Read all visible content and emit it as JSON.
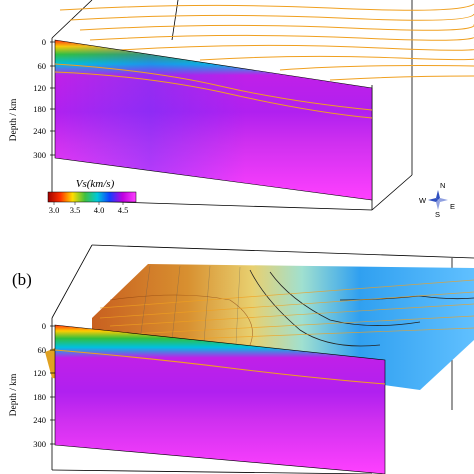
{
  "panel_b_label": "(b)",
  "depth_axis": {
    "title": "Depth / km",
    "ticks": [
      "0",
      "60",
      "120",
      "180",
      "240",
      "300"
    ]
  },
  "colorbar": {
    "title": "Vs(km/s)",
    "ticks": [
      "3.0",
      "3.5",
      "4.0",
      "4.5"
    ],
    "range": [
      3.0,
      4.7
    ],
    "colors": [
      "#a00000",
      "#ff3000",
      "#ffdd00",
      "#40c040",
      "#00c8d8",
      "#1040ff",
      "#c000e0",
      "#ff40ff"
    ]
  },
  "compass": {
    "n": "N",
    "s": "S",
    "e": "E",
    "w": "W"
  },
  "colors": {
    "isoline": "#f0a020",
    "frame": "#000000",
    "contour": "#333333"
  }
}
